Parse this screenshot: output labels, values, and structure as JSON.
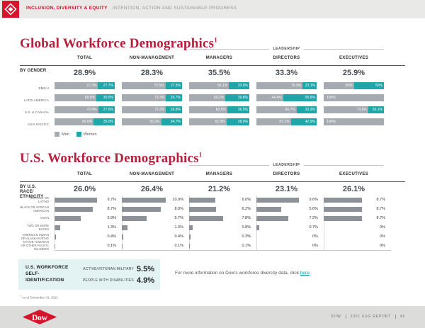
{
  "header": {
    "brand": "INCLUSION, DIVERSITY & EQUITY",
    "tagline": "INTENTION, ACTION AND SUSTAINABLE PROGRESS"
  },
  "global": {
    "title": "Global Workforce Demographics",
    "footnote_ref": "1",
    "leadership_label": "LEADERSHIP",
    "by_label": "BY GENDER",
    "region_labels": [
      "EMEAI",
      "LATIN AMERICA",
      "U.S. & CANADA",
      "ASIA PACIFIC"
    ],
    "legend": [
      {
        "label": "Men",
        "color": "#a5abb1"
      },
      {
        "label": "Women",
        "color": "#1fa6a9"
      }
    ],
    "columns": [
      {
        "label": "TOTAL",
        "headline": "28.9%",
        "bars": [
          {
            "men": "72.3%",
            "women": "27.7%"
          },
          {
            "men": "69.5%",
            "women": "30.5%"
          },
          {
            "men": "72.4%",
            "women": "27.6%"
          },
          {
            "men": "65.0%",
            "women": "35.0%"
          }
        ]
      },
      {
        "label": "NON-MANAGEMENT",
        "headline": "28.3%",
        "bars": [
          {
            "men": "72.5%",
            "women": "27.5%"
          },
          {
            "men": "73.3%",
            "women": "26.7%"
          },
          {
            "men": "73.2%",
            "women": "26.8%"
          },
          {
            "men": "65.3%",
            "women": "34.7%"
          }
        ]
      },
      {
        "label": "MANAGERS",
        "headline": "35.5%",
        "bars": [
          {
            "men": "66.1%",
            "women": "33.9%"
          },
          {
            "men": "60.2%",
            "women": "39.8%"
          },
          {
            "men": "63.5%",
            "women": "36.5%"
          },
          {
            "men": "62.0%",
            "women": "38.0%"
          }
        ]
      },
      {
        "label": "DIRECTORS",
        "headline": "33.3%",
        "bars": [
          {
            "men": "76.9%",
            "women": "23.1%"
          },
          {
            "men": "44.4%",
            "women": "55.6%"
          },
          {
            "men": "66.7%",
            "women": "33.3%"
          },
          {
            "men": "57.1%",
            "women": "42.9%"
          }
        ]
      },
      {
        "label": "EXECUTIVES",
        "headline": "25.9%",
        "bars": [
          {
            "men": "50%",
            "women": "50%"
          },
          {
            "men": "100%",
            "women": ""
          },
          {
            "men": "73.9%",
            "women": "26.1%"
          },
          {
            "men": "100%",
            "women": ""
          }
        ]
      }
    ]
  },
  "us": {
    "title": "U.S. Workforce Demographics",
    "footnote_ref": "1",
    "leadership_label": "LEADERSHIP",
    "by_label": "BY U.S. RACE/ ETHNICITY",
    "race_labels": [
      "HISPANIC OR LATINO",
      "BLACK OR AFRICAN AMERICAN",
      "ASIAN",
      "TWO OR MORE RACES",
      "AMERICAN INDIAN OR ALASKA NATIVE",
      "NATIVE HAWAIIAN OR OTHER PACIFIC ISLANDER"
    ],
    "columns": [
      {
        "label": "TOTAL",
        "headline": "26.0%",
        "values": [
          "9.7%",
          "8.7%",
          "5.9%",
          "1.3%",
          "0.4%",
          "0.1%"
        ]
      },
      {
        "label": "NON-MANAGEMENT",
        "headline": "26.4%",
        "values": [
          "10.0%",
          "8.9%",
          "5.7%",
          "1.3%",
          "0.4%",
          "0.1%"
        ]
      },
      {
        "label": "MANAGERS",
        "headline": "21.2%",
        "values": [
          "6.0%",
          "6.2%",
          "7.8%",
          "0.8%",
          "0.3%",
          "0.1%"
        ]
      },
      {
        "label": "DIRECTORS",
        "headline": "23.1%",
        "values": [
          "9.6%",
          "5.6%",
          "7.2%",
          "0.7%",
          "0%",
          "0%"
        ]
      },
      {
        "label": "EXECUTIVES",
        "headline": "26.1%",
        "values": [
          "8.7%",
          "8.7%",
          "8.7%",
          "0%",
          "0%",
          "0%"
        ]
      }
    ]
  },
  "selfid": {
    "title": "U.S. WORKFORCE SELF-IDENTIFICATION",
    "items": [
      {
        "label": "ACTIVE/VETERAN MILITARY",
        "value": "5.5%"
      },
      {
        "label": "PEOPLE WITH DISABILITIES",
        "value": "4.9%"
      }
    ]
  },
  "info": {
    "text_before": "For more information on Dow's workforce diversity data, click ",
    "link": "here",
    "text_after": "."
  },
  "footnote": {
    "marker": "1",
    "text": "As of December 31, 2021"
  },
  "footer": {
    "brand": "DOW",
    "report": "2021 ESG REPORT",
    "page": "45",
    "logo_text": "Dow"
  },
  "colors": {
    "brand_red": "#d6152c",
    "title_red": "#b5203c",
    "accent_teal": "#1fa6a9",
    "men_bar_gray": "#a5abb1",
    "us_bar_gray": "#8d9298",
    "link_teal": "#0097a0",
    "selfid_bg": "#e3f3f4"
  },
  "chart_data": [
    {
      "type": "bar",
      "subtype": "horizontal-stacked",
      "title": "Global Workforce Demographics (by gender, % women headline)",
      "categories": [
        "EMEAI",
        "LATIN AMERICA",
        "U.S. & CANADA",
        "ASIA PACIFIC"
      ],
      "legend": [
        "Men",
        "Women"
      ],
      "units": "%",
      "columns": [
        {
          "name": "TOTAL",
          "headline": 28.9,
          "men": [
            72.3,
            69.5,
            72.4,
            65.0
          ],
          "women": [
            27.7,
            30.5,
            27.6,
            35.0
          ]
        },
        {
          "name": "NON-MANAGEMENT",
          "headline": 28.3,
          "men": [
            72.5,
            73.3,
            73.2,
            65.3
          ],
          "women": [
            27.5,
            26.7,
            26.8,
            34.7
          ]
        },
        {
          "name": "MANAGERS",
          "headline": 35.5,
          "men": [
            66.1,
            60.2,
            63.5,
            62.0
          ],
          "women": [
            33.9,
            39.8,
            36.5,
            38.0
          ]
        },
        {
          "name": "DIRECTORS",
          "headline": 33.3,
          "men": [
            76.9,
            44.4,
            66.7,
            57.1
          ],
          "women": [
            23.1,
            55.6,
            33.3,
            42.9
          ]
        },
        {
          "name": "EXECUTIVES",
          "headline": 25.9,
          "men": [
            50,
            100,
            73.9,
            100
          ],
          "women": [
            50,
            0,
            26.1,
            0
          ]
        }
      ]
    },
    {
      "type": "bar",
      "subtype": "horizontal",
      "title": "U.S. Workforce Demographics (by U.S. race/ethnicity)",
      "categories": [
        "HISPANIC OR LATINO",
        "BLACK OR AFRICAN AMERICAN",
        "ASIAN",
        "TWO OR MORE RACES",
        "AMERICAN INDIAN OR ALASKA NATIVE",
        "NATIVE HAWAIIAN OR OTHER PACIFIC ISLANDER"
      ],
      "units": "%",
      "xlim": [
        0,
        10.5
      ],
      "columns": [
        {
          "name": "TOTAL",
          "headline": 26.0,
          "values": [
            9.7,
            8.7,
            5.9,
            1.3,
            0.4,
            0.1
          ]
        },
        {
          "name": "NON-MANAGEMENT",
          "headline": 26.4,
          "values": [
            10.0,
            8.9,
            5.7,
            1.3,
            0.4,
            0.1
          ]
        },
        {
          "name": "MANAGERS",
          "headline": 21.2,
          "values": [
            6.0,
            6.2,
            7.8,
            0.8,
            0.3,
            0.1
          ]
        },
        {
          "name": "DIRECTORS",
          "headline": 23.1,
          "values": [
            9.6,
            5.6,
            7.2,
            0.7,
            0,
            0
          ]
        },
        {
          "name": "EXECUTIVES",
          "headline": 26.1,
          "values": [
            8.7,
            8.7,
            8.7,
            0,
            0,
            0
          ]
        }
      ]
    }
  ]
}
